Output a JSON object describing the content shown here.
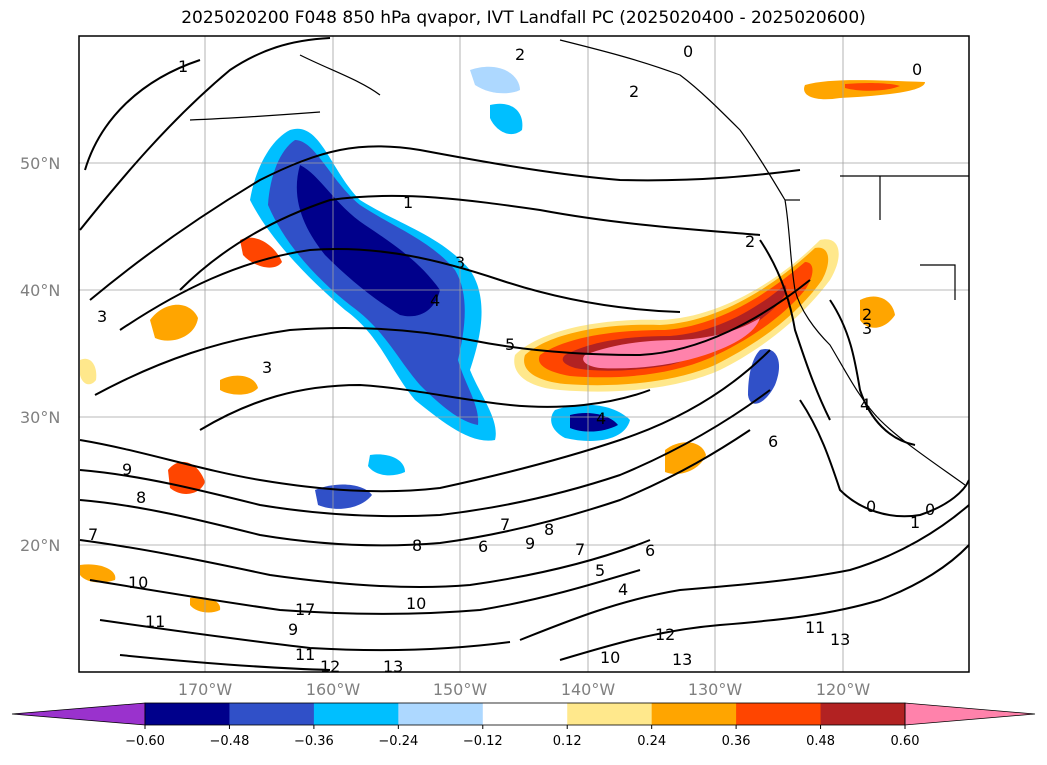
{
  "title": "2025020200 F048 850 hPa qvapor, IVT Landfall PC (2025020400 - 2025020600)",
  "lat_labels": [
    "50°N",
    "40°N",
    "30°N",
    "20°N"
  ],
  "lon_labels": [
    "170°W",
    "160°W",
    "150°W",
    "140°W",
    "130°W",
    "120°W"
  ],
  "colorbar": {
    "ticks": [
      "−0.60",
      "−0.48",
      "−0.36",
      "−0.24",
      "−0.12",
      "0.12",
      "0.24",
      "0.36",
      "0.48",
      "0.60"
    ],
    "colors": [
      "#9a32cd",
      "#00008b",
      "#3050c8",
      "#00bfff",
      "#add8ff",
      "#ffffff",
      "#ffe88c",
      "#ffa500",
      "#ff4500",
      "#b22222",
      "#ff82ab",
      "#ff82ab"
    ]
  },
  "contour_labels": [
    "1",
    "2",
    "0",
    "0",
    "2",
    "1",
    "3",
    "2",
    "5",
    "3",
    "3",
    "4",
    "4",
    "9",
    "8",
    "7",
    "7",
    "8",
    "9",
    "6",
    "8",
    "10",
    "17",
    "9",
    "10",
    "11",
    "11",
    "12",
    "13",
    "10",
    "12",
    "13",
    "4",
    "5",
    "6",
    "11",
    "13",
    "7",
    "6",
    "4",
    "3",
    "2",
    "0",
    "1",
    "0"
  ],
  "colors": {
    "purple": "#9a32cd",
    "dark_blue": "#00008b",
    "blue": "#3050c8",
    "cyan": "#00bfff",
    "light_blue": "#add8ff",
    "yellow": "#ffe88c",
    "orange": "#ffa500",
    "red_orange": "#ff4500",
    "dark_red": "#b22222",
    "pink": "#ff82ab"
  }
}
